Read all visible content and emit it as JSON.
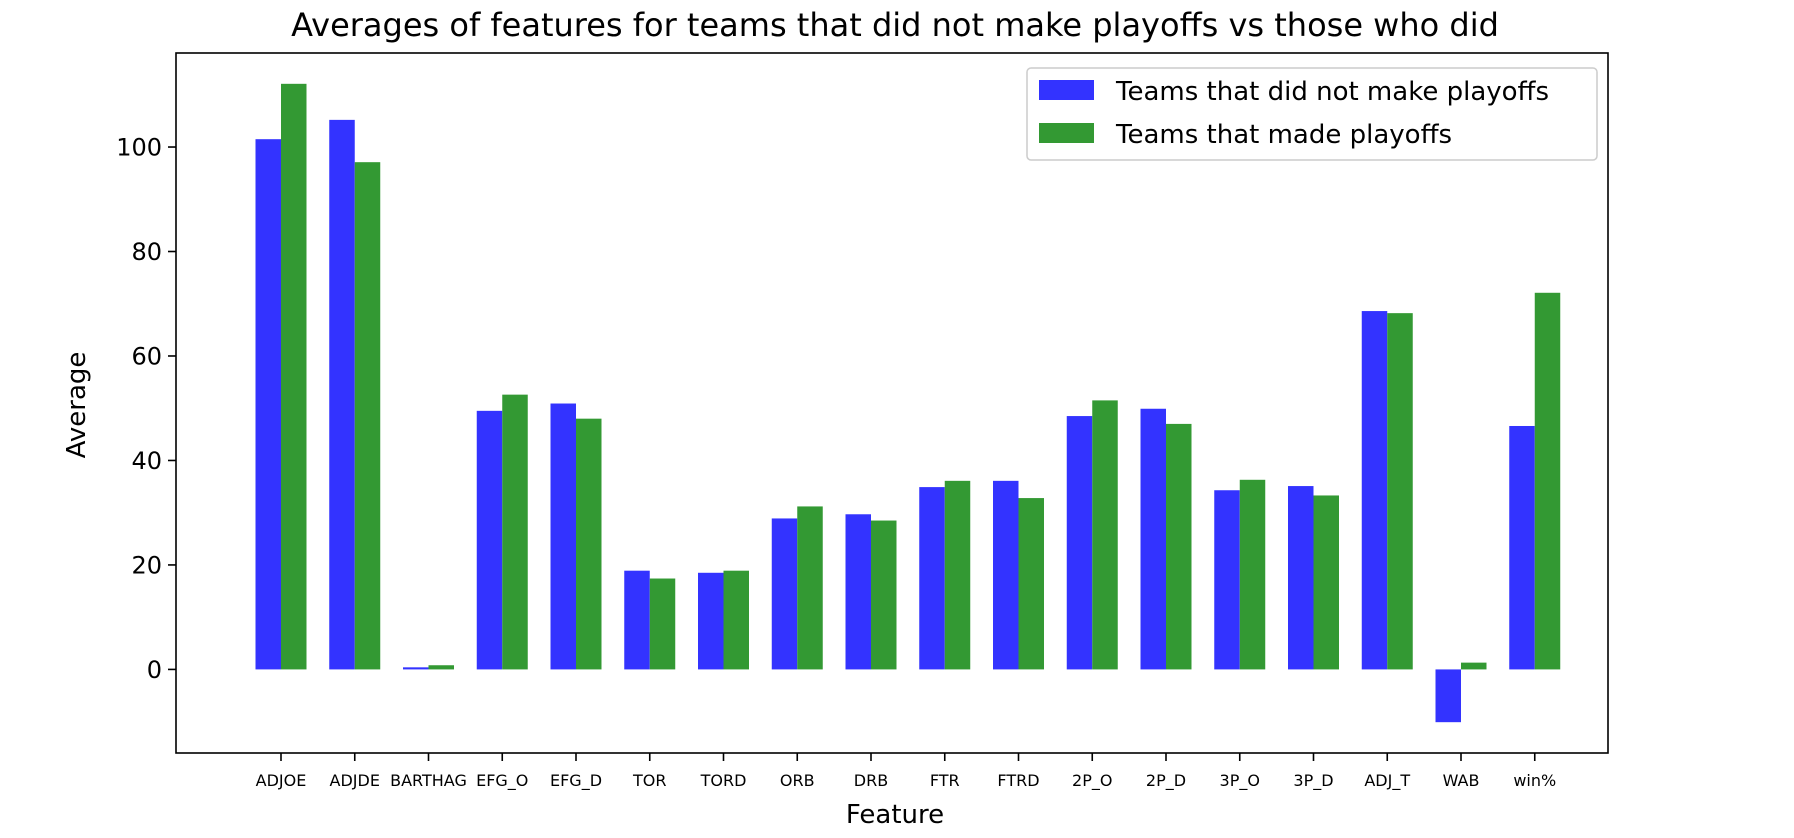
{
  "chart_data": {
    "type": "bar",
    "title": "Averages of features for teams that did not make playoffs vs those who did",
    "xlabel": "Feature",
    "ylabel": "Average",
    "ylim": [
      -16,
      118
    ],
    "yticks": [
      0,
      20,
      40,
      60,
      80,
      100
    ],
    "grid": false,
    "legend_position": "top-right",
    "categories": [
      "ADJOE",
      "ADJDE",
      "BARTHAG",
      "EFG_O",
      "EFG_D",
      "TOR",
      "TORD",
      "ORB",
      "DRB",
      "FTR",
      "FTRD",
      "2P_O",
      "2P_D",
      "3P_O",
      "3P_D",
      "ADJ_T",
      "WAB",
      "win%"
    ],
    "series": [
      {
        "name": "Teams that did not make playoffs",
        "color": "#3333ff",
        "values": [
          101.5,
          105.2,
          0.4,
          49.5,
          50.9,
          18.9,
          18.5,
          28.9,
          29.7,
          34.9,
          36.1,
          48.5,
          49.9,
          34.3,
          35.1,
          68.6,
          -10.1,
          46.6
        ]
      },
      {
        "name": "Teams that made playoffs",
        "color": "#339933",
        "values": [
          112.1,
          97.1,
          0.8,
          52.6,
          48.0,
          17.4,
          18.9,
          31.2,
          28.5,
          36.1,
          32.8,
          51.5,
          47.0,
          36.3,
          33.3,
          68.2,
          1.3,
          72.1
        ]
      }
    ]
  }
}
